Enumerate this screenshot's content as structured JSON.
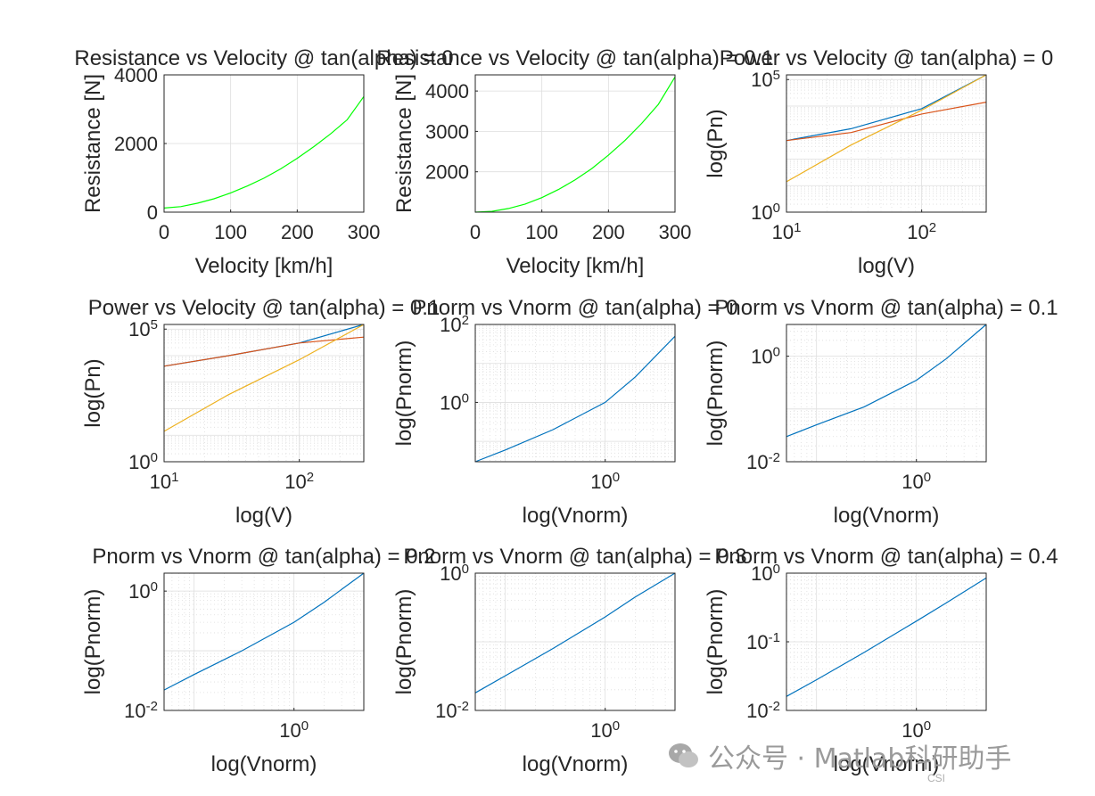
{
  "chart_data": [
    {
      "type": "line",
      "title": "Resistance vs Velocity @ tan(alpha) = 0",
      "xlabel": "Velocity [km/h]",
      "ylabel": "Resistance [N]",
      "xscale": "linear",
      "yscale": "linear",
      "xlim": [
        0,
        300
      ],
      "ylim": [
        0,
        4000
      ],
      "xticks": [
        0,
        100,
        200,
        300
      ],
      "xticklabels": [
        "0",
        "100",
        "200",
        "300"
      ],
      "yticks": [
        0,
        2000,
        4000
      ],
      "yticklabels": [
        "0",
        "2000",
        "4000"
      ],
      "grid": true,
      "series": [
        {
          "color": "#00ff00",
          "x": [
            0,
            25,
            50,
            75,
            100,
            125,
            150,
            175,
            200,
            225,
            250,
            275,
            300
          ],
          "y": [
            120,
            160,
            260,
            390,
            560,
            760,
            990,
            1260,
            1570,
            1910,
            2280,
            2690,
            3370
          ]
        }
      ]
    },
    {
      "type": "line",
      "title": "Resistance vs Velocity @ tan(alpha) = 0.1",
      "xlabel": "Velocity [km/h]",
      "ylabel": "Resistance [N]",
      "xscale": "linear",
      "yscale": "linear",
      "xlim": [
        0,
        300
      ],
      "ylim": [
        1000,
        4400
      ],
      "xticks": [
        0,
        100,
        200,
        300
      ],
      "xticklabels": [
        "0",
        "100",
        "200",
        "300"
      ],
      "yticks": [
        2000,
        3000,
        4000
      ],
      "yticklabels": [
        "2000",
        "3000",
        "4000"
      ],
      "grid": true,
      "series": [
        {
          "color": "#00ff00",
          "x": [
            0,
            25,
            50,
            75,
            100,
            125,
            150,
            175,
            200,
            225,
            250,
            275,
            300
          ],
          "y": [
            1000,
            1020,
            1090,
            1200,
            1360,
            1560,
            1800,
            2080,
            2410,
            2780,
            3200,
            3670,
            4350
          ]
        }
      ]
    },
    {
      "type": "line",
      "title": "Power vs Velocity @ tan(alpha) = 0",
      "xlabel": "log(V)",
      "ylabel": "log(Pn)",
      "xscale": "log",
      "yscale": "log",
      "xlim": [
        10,
        300
      ],
      "ylim": [
        1,
        150000
      ],
      "xticks": [
        10,
        100
      ],
      "xticklabels": [
        "10^1",
        "10^2"
      ],
      "yticks": [
        1,
        100000
      ],
      "yticklabels": [
        "10^0",
        "10^5"
      ],
      "grid": true,
      "series": [
        {
          "color": "#0072bd",
          "x": [
            10,
            30,
            100,
            300
          ],
          "y": [
            500,
            1400,
            8000,
            150000
          ]
        },
        {
          "color": "#d95319",
          "x": [
            10,
            30,
            100,
            300
          ],
          "y": [
            500,
            1000,
            5000,
            14000
          ]
        },
        {
          "color": "#edb120",
          "x": [
            10,
            30,
            100,
            300
          ],
          "y": [
            14,
            340,
            7000,
            150000
          ]
        }
      ]
    },
    {
      "type": "line",
      "title": "Power vs Velocity @ tan(alpha) = 0.1",
      "xlabel": "log(V)",
      "ylabel": "log(Pn)",
      "xscale": "log",
      "yscale": "log",
      "xlim": [
        10,
        300
      ],
      "ylim": [
        1,
        150000
      ],
      "xticks": [
        10,
        100
      ],
      "xticklabels": [
        "10^1",
        "10^2"
      ],
      "yticks": [
        1,
        100000
      ],
      "yticklabels": [
        "10^0",
        "10^5"
      ],
      "grid": true,
      "series": [
        {
          "color": "#0072bd",
          "x": [
            10,
            30,
            100,
            300
          ],
          "y": [
            4000,
            10000,
            30000,
            150000
          ]
        },
        {
          "color": "#d95319",
          "x": [
            10,
            30,
            100,
            300
          ],
          "y": [
            4000,
            10000,
            30000,
            50000
          ]
        },
        {
          "color": "#edb120",
          "x": [
            10,
            30,
            100,
            300
          ],
          "y": [
            14,
            340,
            7000,
            150000
          ]
        }
      ]
    },
    {
      "type": "line",
      "title": "Pnorm vs Vnorm @ tan(alpha) = 0",
      "xlabel": "log(Vnorm)",
      "ylabel": "log(Pnorm)",
      "xscale": "log",
      "yscale": "log",
      "xlim": [
        0.05,
        5
      ],
      "ylim": [
        0.03,
        100
      ],
      "xticks": [
        1
      ],
      "xticklabels": [
        "10^0"
      ],
      "yticks": [
        1,
        100
      ],
      "yticklabels": [
        "10^0",
        "10^2"
      ],
      "grid": true,
      "series": [
        {
          "color": "#0072bd",
          "x": [
            0.05,
            0.1,
            0.3,
            1,
            2,
            5
          ],
          "y": [
            0.03,
            0.06,
            0.2,
            1,
            4.5,
            50
          ]
        }
      ]
    },
    {
      "type": "line",
      "title": "Pnorm vs Vnorm @ tan(alpha) = 0.1",
      "xlabel": "log(Vnorm)",
      "ylabel": "log(Pnorm)",
      "xscale": "log",
      "yscale": "log",
      "xlim": [
        0.05,
        5
      ],
      "ylim": [
        0.01,
        4
      ],
      "xticks": [
        1
      ],
      "xticklabels": [
        "10^0"
      ],
      "yticks": [
        0.01,
        1
      ],
      "yticklabels": [
        "10^-2",
        "10^0"
      ],
      "grid": true,
      "series": [
        {
          "color": "#0072bd",
          "x": [
            0.05,
            0.1,
            0.3,
            1,
            2,
            5
          ],
          "y": [
            0.03,
            0.05,
            0.11,
            0.35,
            0.9,
            4
          ]
        }
      ]
    },
    {
      "type": "line",
      "title": "Pnorm vs Vnorm @ tan(alpha) = 0.2",
      "xlabel": "log(Vnorm)",
      "ylabel": "log(Pnorm)",
      "xscale": "log",
      "yscale": "log",
      "xlim": [
        0.05,
        5
      ],
      "ylim": [
        0.01,
        2
      ],
      "xticks": [
        1
      ],
      "xticklabels": [
        "10^0"
      ],
      "yticks": [
        0.01,
        1
      ],
      "yticklabels": [
        "10^-2",
        "10^0"
      ],
      "grid": true,
      "series": [
        {
          "color": "#0072bd",
          "x": [
            0.05,
            0.1,
            0.3,
            1,
            2,
            5
          ],
          "y": [
            0.022,
            0.04,
            0.1,
            0.3,
            0.65,
            2
          ]
        }
      ]
    },
    {
      "type": "line",
      "title": "Pnorm vs Vnorm @ tan(alpha) = 0.3",
      "xlabel": "log(Vnorm)",
      "ylabel": "log(Pnorm)",
      "xscale": "log",
      "yscale": "log",
      "xlim": [
        0.05,
        5
      ],
      "ylim": [
        0.01,
        1
      ],
      "xticks": [
        1
      ],
      "xticklabels": [
        "10^0"
      ],
      "yticks": [
        0.01,
        1
      ],
      "yticklabels": [
        "10^-2",
        "10^0"
      ],
      "grid": true,
      "series": [
        {
          "color": "#0072bd",
          "x": [
            0.05,
            0.1,
            0.3,
            1,
            2,
            5
          ],
          "y": [
            0.018,
            0.032,
            0.08,
            0.23,
            0.45,
            1
          ]
        }
      ]
    },
    {
      "type": "line",
      "title": "Pnorm vs Vnorm @ tan(alpha) = 0.4",
      "xlabel": "log(Vnorm)",
      "ylabel": "log(Pnorm)",
      "xscale": "log",
      "yscale": "log",
      "xlim": [
        0.05,
        5
      ],
      "ylim": [
        0.01,
        1
      ],
      "xticks": [
        1
      ],
      "xticklabels": [
        "10^0"
      ],
      "yticks": [
        0.01,
        0.1,
        1
      ],
      "yticklabels": [
        "10^-2",
        "10^-1",
        "10^0"
      ],
      "grid": true,
      "series": [
        {
          "color": "#0072bd",
          "x": [
            0.05,
            0.1,
            0.3,
            1,
            2,
            5
          ],
          "y": [
            0.016,
            0.028,
            0.07,
            0.2,
            0.37,
            0.85
          ]
        }
      ]
    }
  ],
  "watermark": {
    "text": "公众号 · Matlab科研助手",
    "footer": "CSI",
    "icon": "wechat-icon"
  }
}
